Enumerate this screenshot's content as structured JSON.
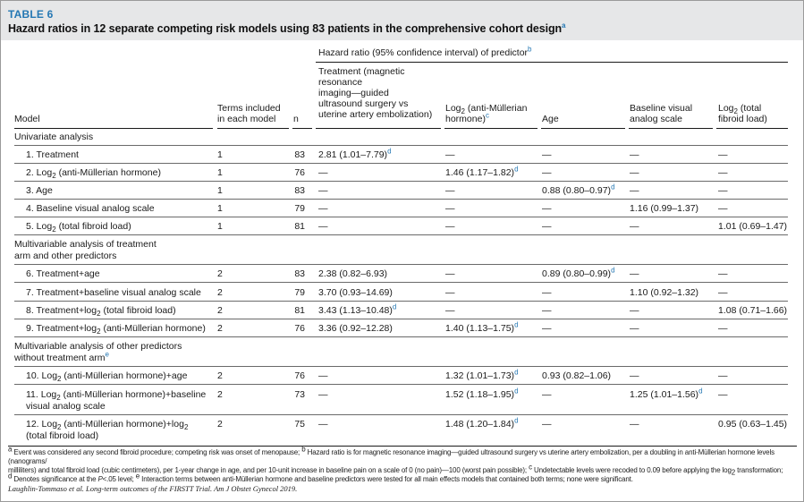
{
  "table": {
    "label": "TABLE 6",
    "title": "Hazard ratios in 12 separate competing risk models using 83 patients in the comprehensive cohort design",
    "title_sup": "a"
  },
  "header": {
    "model": "Model",
    "terms_l1": "Terms included",
    "terms_l2": "in each model",
    "n": "n",
    "group": "Hazard ratio (95% confidence interval) of predictor",
    "group_sup": "b",
    "treatment_lines": [
      "Treatment (magnetic",
      "resonance",
      "imaging—guided",
      "ultrasound surgery vs",
      "uterine artery embolization)"
    ],
    "amh_l1_pre": "Log",
    "amh_l1_sub": "2",
    "amh_l1_post": " (anti-Müllerian",
    "amh_l2": "hormone)",
    "amh_sup": "c",
    "age": "Age",
    "vas_l1": "Baseline visual",
    "vas_l2": "analog scale",
    "tfl_l1_pre": "Log",
    "tfl_l1_sub": "2",
    "tfl_l1_post": " (total",
    "tfl_l2": "fibroid load)"
  },
  "sections": {
    "univariate": "Univariate analysis",
    "multi_treat_l1": "Multivariable analysis of treatment",
    "multi_treat_l2": "arm and other predictors",
    "multi_other_l1": "Multivariable analysis of other predictors",
    "multi_other_l2": "without treatment arm",
    "multi_other_sup": "e"
  },
  "rows": [
    {
      "model": "1. Treatment",
      "terms": "1",
      "n": "83",
      "treat": "2.81 (1.01–7.79)",
      "treat_sup": "d",
      "amh": "—",
      "age": "—",
      "vas": "—",
      "tfl": "—"
    },
    {
      "model_pre": "2. Log",
      "model_sub": "2",
      "model_post": " (anti-Müllerian hormone)",
      "terms": "1",
      "n": "76",
      "treat": "—",
      "amh": "1.46 (1.17–1.82)",
      "amh_sup": "d",
      "age": "—",
      "vas": "—",
      "tfl": "—"
    },
    {
      "model": "3. Age",
      "terms": "1",
      "n": "83",
      "treat": "—",
      "amh": "—",
      "age": "0.88 (0.80–0.97)",
      "age_sup": "d",
      "vas": "—",
      "tfl": "—"
    },
    {
      "model": "4. Baseline visual analog scale",
      "terms": "1",
      "n": "79",
      "treat": "—",
      "amh": "—",
      "age": "—",
      "vas": "1.16 (0.99–1.37)",
      "tfl": "—"
    },
    {
      "model_pre": "5. Log",
      "model_sub": "2",
      "model_post": " (total fibroid load)",
      "terms": "1",
      "n": "81",
      "treat": "—",
      "amh": "—",
      "age": "—",
      "vas": "—",
      "tfl": "1.01 (0.69–1.47)"
    },
    {
      "model": "6. Treatment+age",
      "terms": "2",
      "n": "83",
      "treat": "2.38 (0.82–6.93)",
      "amh": "—",
      "age": "0.89 (0.80–0.99)",
      "age_sup": "d",
      "vas": "—",
      "tfl": "—"
    },
    {
      "model": "7. Treatment+baseline visual analog scale",
      "terms": "2",
      "n": "79",
      "treat": "3.70 (0.93–14.69)",
      "amh": "—",
      "age": "—",
      "vas": "1.10 (0.92–1.32)",
      "tfl": "—"
    },
    {
      "model_pre": "8. Treatment+log",
      "model_sub": "2",
      "model_post": " (total fibroid load)",
      "terms": "2",
      "n": "81",
      "treat": "3.43 (1.13–10.48)",
      "treat_sup": "d",
      "amh": "—",
      "age": "—",
      "vas": "—",
      "tfl": "1.08 (0.71–1.66)"
    },
    {
      "model_pre": "9. Treatment+log",
      "model_sub": "2",
      "model_post": " (anti-Müllerian hormone)",
      "terms": "2",
      "n": "76",
      "treat": "3.36 (0.92–12.28)",
      "amh": "1.40 (1.13–1.75)",
      "amh_sup": "d",
      "age": "—",
      "vas": "—",
      "tfl": "—"
    },
    {
      "model_pre": "10. Log",
      "model_sub": "2",
      "model_post": " (anti-Müllerian hormone)+age",
      "terms": "2",
      "n": "76",
      "treat": "—",
      "amh": "1.32 (1.01–1.73)",
      "amh_sup": "d",
      "age": "0.93 (0.82–1.06)",
      "vas": "—",
      "tfl": "—"
    },
    {
      "model_pre": "11. Log",
      "model_sub": "2",
      "model_post": " (anti-Müllerian hormone)+baseline",
      "model_l2": "visual analog scale",
      "terms": "2",
      "n": "73",
      "treat": "—",
      "amh": "1.52 (1.18–1.95)",
      "amh_sup": "d",
      "age": "—",
      "vas": "1.25 (1.01–1.56)",
      "vas_sup": "d",
      "tfl": "—"
    },
    {
      "model_pre": "12. Log",
      "model_sub": "2",
      "model_post": " (anti-Müllerian hormone)+log",
      "model_sub2": "2",
      "model_l2": "(total fibroid load)",
      "terms": "2",
      "n": "75",
      "treat": "—",
      "amh": "1.48 (1.20–1.84)",
      "amh_sup": "d",
      "age": "—",
      "vas": "—",
      "tfl": "0.95 (0.63–1.45)"
    }
  ],
  "footnotes": {
    "a_sup": "a",
    "a": " Event was considered any second fibroid procedure; competing risk was onset of menopause; ",
    "b_sup": "b",
    "b": " Hazard ratio is for magnetic resonance imaging—guided ultrasound surgery vs uterine artery embolization, per a doubling in anti-Müllerian hormone levels (nanograms/",
    "b2": "milliliters) and total fibroid load (cubic centimeters), per 1-year change in age, and per 10-unit increase in baseline pain on a scale of 0 (no pain)—100 (worst pain possible); ",
    "c_sup": "c",
    "c": " Undetectable levels were recoded to 0.09 before applying the log",
    "c_sub": "2",
    "c_post": " transformation;",
    "d_sup": "d",
    "d_pre": " Denotes significance at the ",
    "d_p": "P",
    "d_post": "<.05 level; ",
    "e_sup": "e",
    "e": " Interaction terms between anti-Müllerian hormone and baseline predictors were tested for all main effects models that contained both terms; none were significant."
  },
  "citation": "Laughlin-Tommaso et al. Long-term outcomes of the FIRSTT Trial. Am J Obstet Gynecol 2019."
}
